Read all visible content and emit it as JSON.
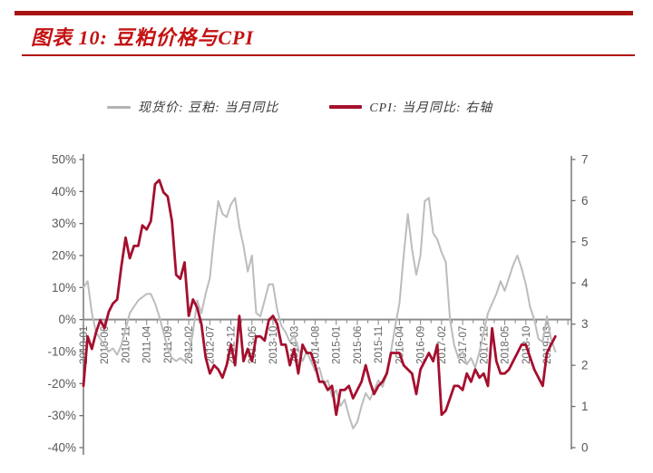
{
  "header": {
    "title": "图表 10: 豆粕价格与CPI"
  },
  "legend": {
    "items": [
      {
        "label": "现货价: 豆粕: 当月同比",
        "color": "#b3b3b3"
      },
      {
        "label": "CPI: 当月同比: 右轴",
        "color": "#a50f2e"
      }
    ]
  },
  "chart_data": {
    "type": "line",
    "title": "豆粕价格与CPI",
    "x_start": "2010-01",
    "x_end": "2019-05",
    "x_tick_interval_months": 5,
    "x_tick_labels": [
      "2010-01",
      "2010-06",
      "2010-11",
      "2011-04",
      "2011-09",
      "2012-02",
      "2012-07",
      "2012-12",
      "2013-05",
      "2013-10",
      "2014-03",
      "2014-08",
      "2015-01",
      "2015-06",
      "2015-11",
      "2016-04",
      "2016-09",
      "2017-02",
      "2017-07",
      "2017-12",
      "2018-05",
      "2018-10",
      "2019-03"
    ],
    "left_axis": {
      "min": -40,
      "max": 50,
      "tick_values": [
        50,
        40,
        30,
        20,
        10,
        0,
        -10,
        -20,
        -30,
        -40
      ],
      "tick_labels": [
        "50%",
        "40%",
        "30%",
        "20%",
        "10%",
        "0%",
        "-10%",
        "-20%",
        "-30%",
        "-40%"
      ]
    },
    "right_axis": {
      "min": 0,
      "max": 7,
      "tick_values": [
        7,
        6,
        5,
        4,
        3,
        2,
        1,
        0
      ],
      "tick_labels": [
        "7",
        "6",
        "5",
        "4",
        "3",
        "2",
        "1",
        "0"
      ]
    },
    "grid": "zero-line-only",
    "legend_position": "top",
    "series": [
      {
        "name": "现货价: 豆粕: 当月同比",
        "axis": "left",
        "unit": "%",
        "color": "#bcbcbc",
        "line_width": 2,
        "values": [
          10,
          12,
          2,
          -4,
          -6,
          -8,
          -10,
          -9,
          -11,
          -8,
          -3,
          2,
          4,
          6,
          7,
          8,
          8,
          5,
          1,
          -4,
          -9,
          -12,
          -13,
          -12,
          -13,
          -11,
          -4,
          6,
          2,
          8,
          13,
          26,
          37,
          33,
          32,
          36,
          38,
          29,
          23,
          15,
          20,
          2,
          1,
          6,
          11,
          11,
          3,
          -2,
          -4,
          -7,
          -5,
          -9,
          -13,
          -10,
          -13,
          -16,
          -15,
          -20,
          -19,
          -24,
          -22,
          -27,
          -25,
          -30,
          -34,
          -32,
          -27,
          -23,
          -25,
          -22,
          -19,
          -21,
          -17,
          -10,
          -2,
          5,
          20,
          33,
          22,
          14,
          20,
          37,
          38,
          27,
          25,
          21,
          18,
          0,
          -8,
          -12,
          -10,
          -14,
          -12,
          -15,
          -10,
          -4,
          2,
          5,
          8,
          12,
          9,
          13,
          17,
          20,
          16,
          11,
          4,
          0,
          -6,
          -7,
          1,
          -6,
          -10
        ]
      },
      {
        "name": "CPI: 当月同比: 右轴",
        "axis": "right",
        "unit": "%",
        "color": "#a50f2e",
        "line_width": 2.8,
        "values": [
          1.5,
          2.7,
          2.4,
          2.8,
          3.1,
          2.9,
          3.3,
          3.5,
          3.6,
          4.4,
          5.1,
          4.6,
          4.9,
          4.9,
          5.4,
          5.3,
          5.5,
          6.4,
          6.5,
          6.2,
          6.1,
          5.5,
          4.2,
          4.1,
          4.5,
          3.2,
          3.6,
          3.4,
          3.0,
          2.2,
          1.8,
          2.0,
          1.9,
          1.7,
          2.0,
          2.5,
          2.0,
          3.2,
          2.1,
          2.4,
          2.1,
          2.7,
          2.7,
          2.6,
          3.1,
          3.2,
          3.0,
          2.5,
          2.5,
          2.0,
          2.4,
          1.8,
          2.5,
          2.3,
          2.3,
          2.0,
          1.6,
          1.6,
          1.4,
          1.5,
          0.8,
          1.4,
          1.4,
          1.5,
          1.2,
          1.4,
          1.6,
          2.0,
          1.6,
          1.3,
          1.5,
          1.6,
          1.8,
          2.3,
          2.3,
          2.3,
          2.0,
          1.9,
          1.8,
          1.3,
          1.9,
          2.1,
          2.3,
          2.1,
          2.5,
          0.8,
          0.9,
          1.2,
          1.5,
          1.5,
          1.4,
          1.8,
          1.6,
          1.9,
          1.7,
          1.8,
          1.5,
          2.9,
          2.1,
          1.8,
          1.8,
          1.9,
          2.1,
          2.3,
          2.5,
          2.5,
          2.2,
          1.9,
          1.7,
          1.5,
          2.3,
          2.5,
          2.7
        ]
      }
    ]
  }
}
